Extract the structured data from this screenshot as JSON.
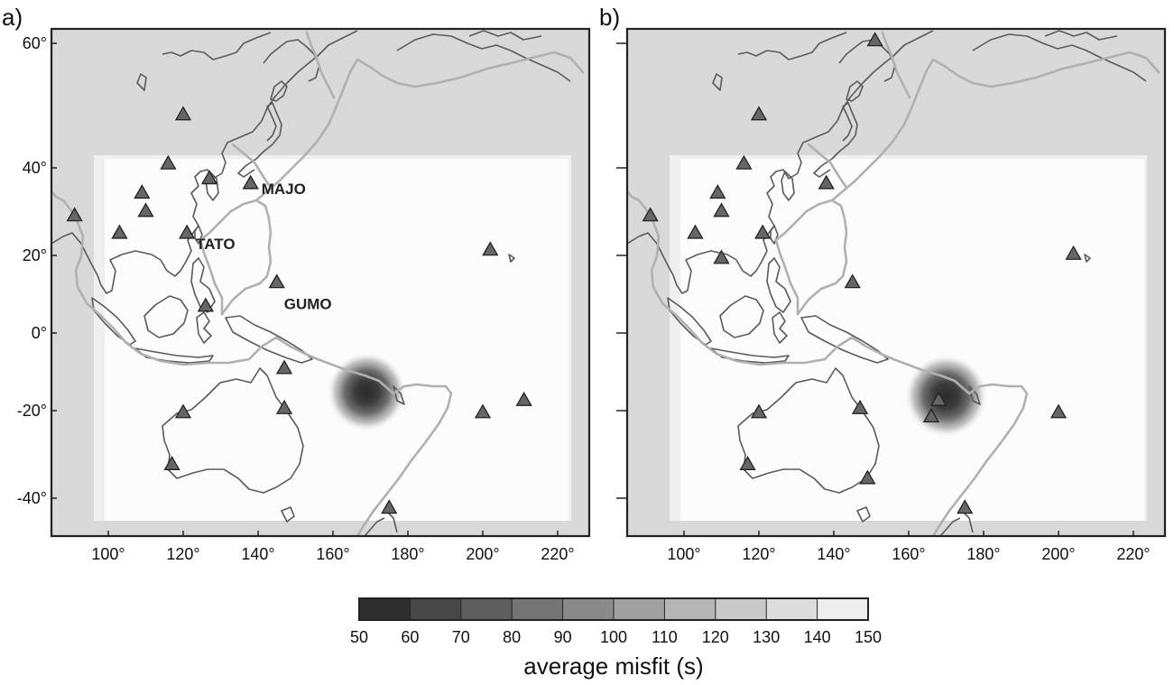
{
  "panels": [
    {
      "id": "a",
      "label": "a)",
      "lat_ticks": [
        "60°",
        "40°",
        "20°",
        "0°",
        "-20°",
        "-40°"
      ],
      "lon_ticks": [
        "100°",
        "120°",
        "140°",
        "160°",
        "180°",
        "200°",
        "220°"
      ],
      "misfit_minimum": {
        "lon": 169,
        "lat": -15
      },
      "stations": [
        {
          "lon": 91,
          "lat": 29
        },
        {
          "lon": 103,
          "lat": 25
        },
        {
          "lon": 109,
          "lat": 34
        },
        {
          "lon": 110,
          "lat": 30
        },
        {
          "lon": 116,
          "lat": 40
        },
        {
          "lon": 120,
          "lat": 49
        },
        {
          "lon": 127,
          "lat": 37
        },
        {
          "lon": 121,
          "lat": 25,
          "name": "TATO"
        },
        {
          "lon": 138,
          "lat": 36,
          "name": "MAJO"
        },
        {
          "lon": 145,
          "lat": 13,
          "name": "GUMO"
        },
        {
          "lon": 126,
          "lat": 7
        },
        {
          "lon": 147,
          "lat": -9
        },
        {
          "lon": 202,
          "lat": 21
        },
        {
          "lon": 120,
          "lat": -20
        },
        {
          "lon": 147,
          "lat": -19
        },
        {
          "lon": 117,
          "lat": -32
        },
        {
          "lon": 175,
          "lat": -41
        },
        {
          "lon": 200,
          "lat": -20
        },
        {
          "lon": 211,
          "lat": -17
        }
      ]
    },
    {
      "id": "b",
      "label": "b)",
      "lat_ticks": [
        "60°",
        "40°",
        "20°",
        "0°",
        "-20°",
        "-40°"
      ],
      "lon_ticks": [
        "100°",
        "120°",
        "140°",
        "160°",
        "180°",
        "200°",
        "220°"
      ],
      "misfit_minimum": {
        "lon": 170,
        "lat": -16
      },
      "stations": [
        {
          "lon": 151,
          "lat": 60
        },
        {
          "lon": 91,
          "lat": 29
        },
        {
          "lon": 103,
          "lat": 25
        },
        {
          "lon": 109,
          "lat": 34
        },
        {
          "lon": 110,
          "lat": 30
        },
        {
          "lon": 116,
          "lat": 40
        },
        {
          "lon": 120,
          "lat": 49
        },
        {
          "lon": 121,
          "lat": 25
        },
        {
          "lon": 138,
          "lat": 36
        },
        {
          "lon": 110,
          "lat": 19
        },
        {
          "lon": 145,
          "lat": 13
        },
        {
          "lon": 204,
          "lat": 20
        },
        {
          "lon": 120,
          "lat": -20
        },
        {
          "lon": 147,
          "lat": -19
        },
        {
          "lon": 117,
          "lat": -32
        },
        {
          "lon": 149,
          "lat": -35
        },
        {
          "lon": 168,
          "lat": -17
        },
        {
          "lon": 166,
          "lat": -21
        },
        {
          "lon": 175,
          "lat": -41
        },
        {
          "lon": 200,
          "lat": -20
        }
      ]
    }
  ],
  "colorbar": {
    "title": "average misfit (s)",
    "labels": [
      "50",
      "60",
      "70",
      "80",
      "90",
      "100",
      "110",
      "120",
      "130",
      "140",
      "150"
    ],
    "colors": [
      "#2e2e2e",
      "#474747",
      "#5e5e5e",
      "#747474",
      "#8a8a8a",
      "#a0a0a0",
      "#b5b5b5",
      "#c9c9c9",
      "#dcdcdc",
      "#eeeeee"
    ]
  },
  "colors": {
    "background_region": "#d9d9d9",
    "grid_region": "#fcfcfc",
    "coastline": "#5a5a5a",
    "plate_boundary": "#b0b0b0",
    "station_fill": "#666666"
  }
}
